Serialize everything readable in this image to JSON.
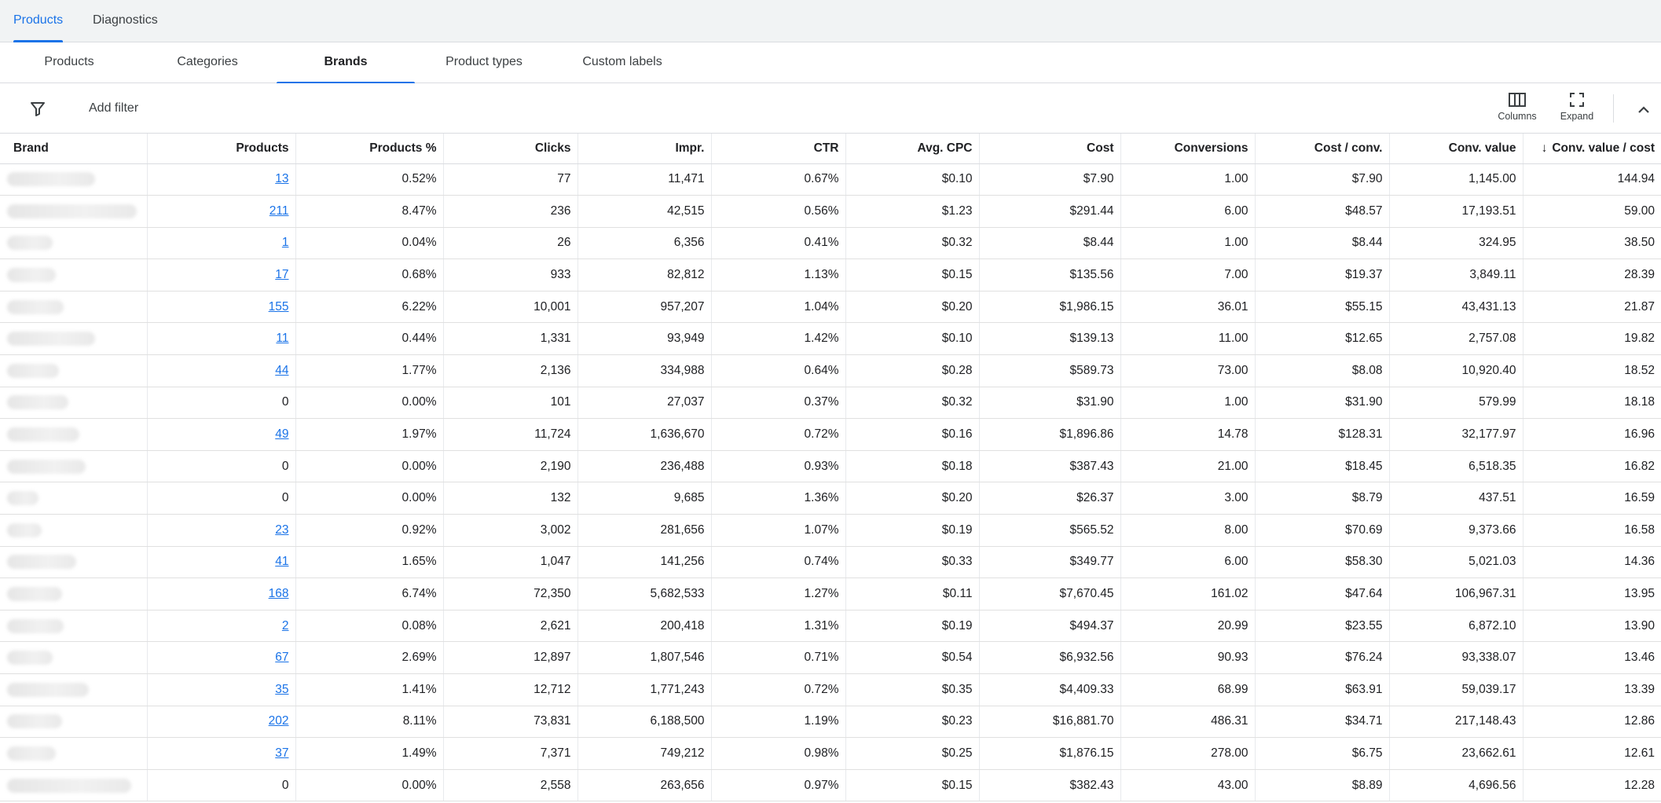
{
  "top_tabs": [
    {
      "label": "Products",
      "active": true
    },
    {
      "label": "Diagnostics",
      "active": false
    }
  ],
  "sub_tabs": [
    {
      "label": "Products",
      "active": false
    },
    {
      "label": "Categories",
      "active": false
    },
    {
      "label": "Brands",
      "active": true
    },
    {
      "label": "Product types",
      "active": false
    },
    {
      "label": "Custom labels",
      "active": false
    }
  ],
  "filter_bar": {
    "add_filter_label": "Add filter",
    "filter_icon": "filter-icon",
    "columns_label": "Columns",
    "columns_icon": "columns-icon",
    "expand_label": "Expand",
    "expand_icon": "fullscreen-icon",
    "collapse_icon": "chevron-up-icon"
  },
  "colors": {
    "accent": "#1a73e8",
    "tab_bar_bg": "#f1f3f4",
    "divider": "#dadce0",
    "text": "#202124"
  },
  "table": {
    "sorted_column": "Conv. value / cost",
    "sort_direction": "descending",
    "headers": [
      "Brand",
      "Products",
      "Products %",
      "Clicks",
      "Impr.",
      "CTR",
      "Avg. CPC",
      "Cost",
      "Conversions",
      "Cost / conv.",
      "Conv. value",
      "Conv. value / cost"
    ],
    "brand_names_obscured": true,
    "rows": [
      {
        "products": "13",
        "products_linked": true,
        "products_pct": "0.52%",
        "clicks": "77",
        "impr": "11,471",
        "ctr": "0.67%",
        "avg_cpc": "$0.10",
        "cost": "$7.90",
        "conversions": "1.00",
        "cost_per_conv": "$7.90",
        "conv_value": "1,145.00",
        "conv_value_per_cost": "144.94"
      },
      {
        "products": "211",
        "products_linked": true,
        "products_pct": "8.47%",
        "clicks": "236",
        "impr": "42,515",
        "ctr": "0.56%",
        "avg_cpc": "$1.23",
        "cost": "$291.44",
        "conversions": "6.00",
        "cost_per_conv": "$48.57",
        "conv_value": "17,193.51",
        "conv_value_per_cost": "59.00"
      },
      {
        "products": "1",
        "products_linked": true,
        "products_pct": "0.04%",
        "clicks": "26",
        "impr": "6,356",
        "ctr": "0.41%",
        "avg_cpc": "$0.32",
        "cost": "$8.44",
        "conversions": "1.00",
        "cost_per_conv": "$8.44",
        "conv_value": "324.95",
        "conv_value_per_cost": "38.50"
      },
      {
        "products": "17",
        "products_linked": true,
        "products_pct": "0.68%",
        "clicks": "933",
        "impr": "82,812",
        "ctr": "1.13%",
        "avg_cpc": "$0.15",
        "cost": "$135.56",
        "conversions": "7.00",
        "cost_per_conv": "$19.37",
        "conv_value": "3,849.11",
        "conv_value_per_cost": "28.39"
      },
      {
        "products": "155",
        "products_linked": true,
        "products_pct": "6.22%",
        "clicks": "10,001",
        "impr": "957,207",
        "ctr": "1.04%",
        "avg_cpc": "$0.20",
        "cost": "$1,986.15",
        "conversions": "36.01",
        "cost_per_conv": "$55.15",
        "conv_value": "43,431.13",
        "conv_value_per_cost": "21.87"
      },
      {
        "products": "11",
        "products_linked": true,
        "products_pct": "0.44%",
        "clicks": "1,331",
        "impr": "93,949",
        "ctr": "1.42%",
        "avg_cpc": "$0.10",
        "cost": "$139.13",
        "conversions": "11.00",
        "cost_per_conv": "$12.65",
        "conv_value": "2,757.08",
        "conv_value_per_cost": "19.82"
      },
      {
        "products": "44",
        "products_linked": true,
        "products_pct": "1.77%",
        "clicks": "2,136",
        "impr": "334,988",
        "ctr": "0.64%",
        "avg_cpc": "$0.28",
        "cost": "$589.73",
        "conversions": "73.00",
        "cost_per_conv": "$8.08",
        "conv_value": "10,920.40",
        "conv_value_per_cost": "18.52"
      },
      {
        "products": "0",
        "products_linked": false,
        "products_pct": "0.00%",
        "clicks": "101",
        "impr": "27,037",
        "ctr": "0.37%",
        "avg_cpc": "$0.32",
        "cost": "$31.90",
        "conversions": "1.00",
        "cost_per_conv": "$31.90",
        "conv_value": "579.99",
        "conv_value_per_cost": "18.18"
      },
      {
        "products": "49",
        "products_linked": true,
        "products_pct": "1.97%",
        "clicks": "11,724",
        "impr": "1,636,670",
        "ctr": "0.72%",
        "avg_cpc": "$0.16",
        "cost": "$1,896.86",
        "conversions": "14.78",
        "cost_per_conv": "$128.31",
        "conv_value": "32,177.97",
        "conv_value_per_cost": "16.96"
      },
      {
        "products": "0",
        "products_linked": false,
        "products_pct": "0.00%",
        "clicks": "2,190",
        "impr": "236,488",
        "ctr": "0.93%",
        "avg_cpc": "$0.18",
        "cost": "$387.43",
        "conversions": "21.00",
        "cost_per_conv": "$18.45",
        "conv_value": "6,518.35",
        "conv_value_per_cost": "16.82"
      },
      {
        "products": "0",
        "products_linked": false,
        "products_pct": "0.00%",
        "clicks": "132",
        "impr": "9,685",
        "ctr": "1.36%",
        "avg_cpc": "$0.20",
        "cost": "$26.37",
        "conversions": "3.00",
        "cost_per_conv": "$8.79",
        "conv_value": "437.51",
        "conv_value_per_cost": "16.59"
      },
      {
        "products": "23",
        "products_linked": true,
        "products_pct": "0.92%",
        "clicks": "3,002",
        "impr": "281,656",
        "ctr": "1.07%",
        "avg_cpc": "$0.19",
        "cost": "$565.52",
        "conversions": "8.00",
        "cost_per_conv": "$70.69",
        "conv_value": "9,373.66",
        "conv_value_per_cost": "16.58"
      },
      {
        "products": "41",
        "products_linked": true,
        "products_pct": "1.65%",
        "clicks": "1,047",
        "impr": "141,256",
        "ctr": "0.74%",
        "avg_cpc": "$0.33",
        "cost": "$349.77",
        "conversions": "6.00",
        "cost_per_conv": "$58.30",
        "conv_value": "5,021.03",
        "conv_value_per_cost": "14.36"
      },
      {
        "products": "168",
        "products_linked": true,
        "products_pct": "6.74%",
        "clicks": "72,350",
        "impr": "5,682,533",
        "ctr": "1.27%",
        "avg_cpc": "$0.11",
        "cost": "$7,670.45",
        "conversions": "161.02",
        "cost_per_conv": "$47.64",
        "conv_value": "106,967.31",
        "conv_value_per_cost": "13.95"
      },
      {
        "products": "2",
        "products_linked": true,
        "products_pct": "0.08%",
        "clicks": "2,621",
        "impr": "200,418",
        "ctr": "1.31%",
        "avg_cpc": "$0.19",
        "cost": "$494.37",
        "conversions": "20.99",
        "cost_per_conv": "$23.55",
        "conv_value": "6,872.10",
        "conv_value_per_cost": "13.90"
      },
      {
        "products": "67",
        "products_linked": true,
        "products_pct": "2.69%",
        "clicks": "12,897",
        "impr": "1,807,546",
        "ctr": "0.71%",
        "avg_cpc": "$0.54",
        "cost": "$6,932.56",
        "conversions": "90.93",
        "cost_per_conv": "$76.24",
        "conv_value": "93,338.07",
        "conv_value_per_cost": "13.46"
      },
      {
        "products": "35",
        "products_linked": true,
        "products_pct": "1.41%",
        "clicks": "12,712",
        "impr": "1,771,243",
        "ctr": "0.72%",
        "avg_cpc": "$0.35",
        "cost": "$4,409.33",
        "conversions": "68.99",
        "cost_per_conv": "$63.91",
        "conv_value": "59,039.17",
        "conv_value_per_cost": "13.39"
      },
      {
        "products": "202",
        "products_linked": true,
        "products_pct": "8.11%",
        "clicks": "73,831",
        "impr": "6,188,500",
        "ctr": "1.19%",
        "avg_cpc": "$0.23",
        "cost": "$16,881.70",
        "conversions": "486.31",
        "cost_per_conv": "$34.71",
        "conv_value": "217,148.43",
        "conv_value_per_cost": "12.86"
      },
      {
        "products": "37",
        "products_linked": true,
        "products_pct": "1.49%",
        "clicks": "7,371",
        "impr": "749,212",
        "ctr": "0.98%",
        "avg_cpc": "$0.25",
        "cost": "$1,876.15",
        "conversions": "278.00",
        "cost_per_conv": "$6.75",
        "conv_value": "23,662.61",
        "conv_value_per_cost": "12.61"
      },
      {
        "products": "0",
        "products_linked": false,
        "products_pct": "0.00%",
        "clicks": "2,558",
        "impr": "263,656",
        "ctr": "0.97%",
        "avg_cpc": "$0.15",
        "cost": "$382.43",
        "conversions": "43.00",
        "cost_per_conv": "$8.89",
        "conv_value": "4,696.56",
        "conv_value_per_cost": "12.28"
      }
    ]
  }
}
